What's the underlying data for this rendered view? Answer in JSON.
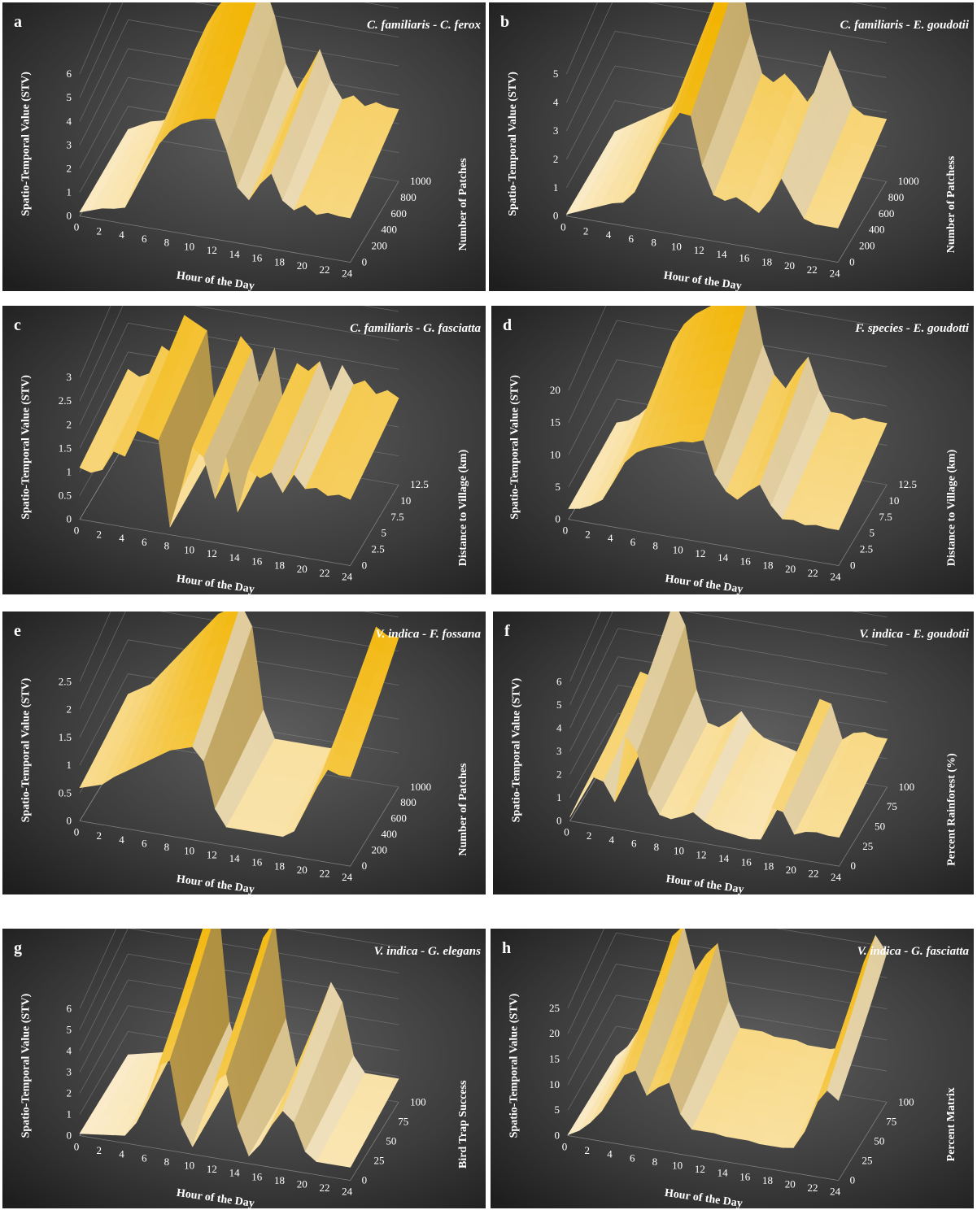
{
  "chart_data": [
    {
      "type": "surface",
      "letter": "a",
      "title": "C. familiaris - C. ferox",
      "xlabel": "Hour of the Day",
      "ylabel": "Spatio-Temporal Value (STV)",
      "zlabel": "Number of Patches",
      "xticks": [
        "0",
        "2",
        "4",
        "6",
        "8",
        "10",
        "12",
        "14",
        "16",
        "18",
        "20",
        "22",
        "24"
      ],
      "yticks": [
        "0",
        "1",
        "2",
        "3",
        "4",
        "5",
        "6"
      ],
      "zticks": [
        "0",
        "200",
        "400",
        "600",
        "800",
        "1000"
      ],
      "ylim": [
        0,
        6
      ],
      "x": [
        0,
        1,
        2,
        3,
        4,
        5,
        6,
        7,
        8,
        9,
        10,
        11,
        12,
        13,
        14,
        15,
        16,
        17,
        18,
        19,
        20,
        21,
        22,
        23,
        24
      ],
      "values": [
        0.2,
        0.4,
        0.6,
        0.7,
        0.9,
        2.3,
        3.4,
        4.3,
        5.0,
        5.5,
        5.8,
        6.0,
        6.1,
        5.0,
        3.4,
        2.6,
        3.3,
        4.1,
        3.1,
        2.5,
        2.7,
        2.4,
        2.6,
        2.5,
        2.5
      ],
      "depth_drop": [
        0.1,
        0.2,
        0.3,
        0.4,
        0.6,
        1.2,
        1.6,
        2.0,
        2.2,
        2.5,
        2.7,
        2.8,
        2.9,
        3.2,
        3.0,
        2.0,
        1.8,
        2.6,
        2.8,
        2.0,
        1.7,
        1.8,
        1.9,
        1.8,
        1.8
      ]
    },
    {
      "type": "surface",
      "letter": "b",
      "title": "C. familiaris - E. goudotii",
      "xlabel": "Hour of the Day",
      "ylabel": "Spatio-Temporal Value (STV)",
      "zlabel": "Number of Patchess",
      "xticks": [
        "0",
        "2",
        "4",
        "6",
        "8",
        "10",
        "12",
        "14",
        "16",
        "18",
        "20",
        "22",
        "24"
      ],
      "yticks": [
        "0",
        "1",
        "2",
        "3",
        "4",
        "5"
      ],
      "zticks": [
        "0",
        "200",
        "400",
        "600",
        "800",
        "1000"
      ],
      "ylim": [
        0,
        5
      ],
      "x": [
        0,
        1,
        2,
        3,
        4,
        5,
        6,
        7,
        8,
        9,
        10,
        11,
        12,
        13,
        14,
        15,
        16,
        17,
        18,
        19,
        20,
        21,
        22,
        23,
        24
      ],
      "values": [
        0.1,
        0.3,
        0.5,
        0.7,
        0.9,
        1.1,
        1.6,
        2.6,
        3.6,
        4.5,
        5.3,
        5.4,
        3.6,
        2.5,
        2.3,
        2.6,
        2.3,
        1.9,
        2.4,
        3.5,
        2.8,
        2.0,
        1.8,
        1.8,
        1.8
      ],
      "depth_drop": [
        0.1,
        0.2,
        0.3,
        0.4,
        0.5,
        0.8,
        1.0,
        1.4,
        1.8,
        2.3,
        2.8,
        3.2,
        2.9,
        2.5,
        2.3,
        2.6,
        2.3,
        1.8,
        1.7,
        2.5,
        2.4,
        1.9,
        1.7,
        1.7,
        1.7
      ]
    },
    {
      "type": "surface",
      "letter": "c",
      "title": "C. familiaris - G. fasciatta",
      "xlabel": "Hour of the Day",
      "ylabel": "Spatio-Temporal Value (STV)",
      "zlabel": "Distance to Village (km)",
      "xticks": [
        "0",
        "2",
        "4",
        "6",
        "8",
        "10",
        "12",
        "14",
        "16",
        "18",
        "20",
        "22",
        "24"
      ],
      "yticks": [
        "0",
        "0.5",
        "1",
        "1.5",
        "2",
        "2.5",
        "3"
      ],
      "zticks": [
        "0",
        "2.5",
        "5",
        "7.5",
        "10",
        "12.5"
      ],
      "ylim": [
        0,
        3
      ],
      "x": [
        0,
        1,
        2,
        3,
        4,
        5,
        6,
        7,
        8,
        9,
        10,
        11,
        12,
        13,
        14,
        15,
        16,
        17,
        18,
        19,
        20,
        21,
        22,
        23,
        24
      ],
      "values": [
        1.2,
        1.1,
        1.2,
        1.7,
        1.6,
        2.3,
        2.2,
        2.1,
        0.2,
        1.1,
        2.1,
        1.9,
        1.0,
        2.0,
        0.8,
        1.8,
        1.7,
        1.9,
        1.4,
        1.9,
        1.6,
        1.7,
        1.5,
        1.6,
        1.5
      ],
      "depth_drop": [
        0.3,
        0.2,
        0.2,
        0.4,
        0.3,
        0.6,
        0.5,
        0.4,
        0.1,
        0.3,
        0.5,
        0.4,
        0.2,
        0.4,
        0.2,
        0.4,
        0.5,
        0.6,
        0.3,
        0.5,
        0.4,
        0.5,
        0.3,
        0.4,
        0.3
      ]
    },
    {
      "type": "surface",
      "letter": "d",
      "title": "F. species - E. goudotti",
      "xlabel": "Hour of the Day",
      "ylabel": "Spatio-Temporal Value (STV)",
      "zlabel": "Distance to Village (km)",
      "xticks": [
        "0",
        "2",
        "4",
        "6",
        "8",
        "10",
        "12",
        "14",
        "16",
        "18",
        "20",
        "22",
        "24"
      ],
      "yticks": [
        "0",
        "5",
        "10",
        "15",
        "20"
      ],
      "zticks": [
        "0",
        "2.5",
        "5",
        "7.5",
        "10",
        "12.5"
      ],
      "ylim": [
        0,
        22
      ],
      "x": [
        0,
        1,
        2,
        3,
        4,
        5,
        6,
        7,
        8,
        9,
        10,
        11,
        12,
        13,
        14,
        15,
        16,
        17,
        18,
        19,
        20,
        21,
        22,
        23,
        24
      ],
      "values": [
        2.0,
        2.5,
        3.5,
        5.0,
        9.0,
        13.5,
        16.0,
        17.5,
        18.5,
        19.5,
        20.5,
        21.0,
        22.0,
        15.0,
        11.5,
        10.0,
        12.5,
        14.5,
        10.5,
        8.0,
        8.0,
        7.5,
        8.0,
        7.8,
        7.8
      ],
      "depth_drop": [
        1.0,
        1.5,
        2.0,
        3.0,
        5.5,
        9.0,
        11.0,
        12.5,
        13.5,
        14.5,
        15.5,
        16.5,
        17.5,
        12.0,
        8.5,
        7.0,
        9.5,
        11.5,
        8.5,
        6.5,
        6.0,
        6.0,
        6.5,
        6.5,
        6.5
      ]
    },
    {
      "type": "surface",
      "letter": "e",
      "title": "V. indica - F. fossana",
      "xlabel": "Hour of the Day",
      "ylabel": "Spatio-Temporal Value (STV)",
      "zlabel": "Number of Patches",
      "xticks": [
        "0",
        "2",
        "4",
        "6",
        "8",
        "10",
        "12",
        "14",
        "16",
        "18",
        "20",
        "22",
        "24"
      ],
      "yticks": [
        "0",
        "0.5",
        "1",
        "1.5",
        "2",
        "2.5"
      ],
      "zticks": [
        "0",
        "200",
        "400",
        "600",
        "800",
        "1000"
      ],
      "ylim": [
        0,
        2.5
      ],
      "x": [
        0,
        1,
        2,
        3,
        4,
        5,
        6,
        7,
        8,
        9,
        10,
        11,
        12,
        13,
        14,
        15,
        16,
        17,
        18,
        19,
        20,
        21,
        22,
        23,
        24
      ],
      "values": [
        0.7,
        0.8,
        0.9,
        1.1,
        1.3,
        1.5,
        1.7,
        1.9,
        2.1,
        2.2,
        2.3,
        2.0,
        0.8,
        0.4,
        0.4,
        0.4,
        0.4,
        0.4,
        0.4,
        0.6,
        1.2,
        1.8,
        2.3,
        2.2,
        2.2
      ],
      "depth_drop": [
        0.3,
        0.4,
        0.5,
        0.6,
        0.8,
        1.0,
        1.2,
        1.4,
        1.6,
        1.7,
        1.8,
        1.6,
        0.5,
        0.2,
        0.2,
        0.2,
        0.2,
        0.2,
        0.2,
        0.4,
        0.9,
        1.4,
        1.8,
        1.7,
        1.7
      ]
    },
    {
      "type": "surface",
      "letter": "f",
      "title": "V. indica - E. goudotii",
      "xlabel": "Hour of the Day",
      "ylabel": "Spatio-Temporal Value (STV)",
      "zlabel": "Percent Rainforest (%)",
      "xticks": [
        "0",
        "2",
        "4",
        "6",
        "8",
        "10",
        "12",
        "14",
        "16",
        "18",
        "20",
        "22",
        "24"
      ],
      "yticks": [
        "0",
        "1",
        "2",
        "3",
        "4",
        "5",
        "6"
      ],
      "zticks": [
        "0",
        "25",
        "50",
        "75",
        "100"
      ],
      "ylim": [
        0,
        6
      ],
      "x": [
        0,
        1,
        2,
        3,
        4,
        5,
        6,
        7,
        8,
        9,
        10,
        11,
        12,
        13,
        14,
        15,
        16,
        17,
        18,
        19,
        20,
        21,
        22,
        23,
        24
      ],
      "values": [
        0.2,
        1.5,
        2.6,
        2.5,
        1.5,
        5.3,
        4.5,
        2.3,
        1.2,
        1.1,
        1.4,
        1.8,
        1.3,
        1.0,
        0.9,
        0.8,
        0.7,
        0.8,
        2.7,
        2.6,
        1.4,
        1.7,
        1.8,
        1.7,
        1.7
      ],
      "depth_drop": [
        0.1,
        0.8,
        1.5,
        1.6,
        1.0,
        3.5,
        3.0,
        1.6,
        0.8,
        0.8,
        1.1,
        1.5,
        1.0,
        0.8,
        0.7,
        0.6,
        0.5,
        0.6,
        1.9,
        1.9,
        1.0,
        1.3,
        1.4,
        1.3,
        1.3
      ]
    },
    {
      "type": "surface",
      "letter": "g",
      "title": "V. indica - G. elegans",
      "xlabel": "Hour of the Day",
      "ylabel": "Spatio-Temporal Value (STV)",
      "zlabel": "Bird Trap Success",
      "xticks": [
        "0",
        "2",
        "4",
        "6",
        "8",
        "10",
        "12",
        "14",
        "16",
        "18",
        "20",
        "22",
        "24"
      ],
      "yticks": [
        "0",
        "1",
        "2",
        "3",
        "4",
        "5",
        "6"
      ],
      "zticks": [
        "0",
        "25",
        "50",
        "75",
        "100"
      ],
      "ylim": [
        0,
        6.5
      ],
      "x": [
        0,
        1,
        2,
        3,
        4,
        5,
        6,
        7,
        8,
        9,
        10,
        11,
        12,
        13,
        14,
        15,
        16,
        17,
        18,
        19,
        20,
        21,
        22,
        23,
        24
      ],
      "values": [
        0.1,
        0.2,
        0.3,
        0.4,
        0.5,
        1.5,
        3.5,
        6.0,
        6.5,
        2.0,
        0.5,
        3.0,
        5.5,
        6.2,
        2.5,
        0.5,
        1.5,
        3.0,
        4.2,
        3.5,
        1.5,
        0.9,
        0.9,
        0.9,
        0.9
      ],
      "depth_drop": [
        0.0,
        0.1,
        0.2,
        0.3,
        0.4,
        1.3,
        3.4,
        5.9,
        6.4,
        1.9,
        0.4,
        2.9,
        5.4,
        6.1,
        2.4,
        0.4,
        1.4,
        2.9,
        4.1,
        3.4,
        1.4,
        0.8,
        0.8,
        0.8,
        0.8
      ]
    },
    {
      "type": "surface",
      "letter": "h",
      "title": "V. indica - G. fasciatta",
      "xlabel": "Hour of the Day",
      "ylabel": "Spatio-Temporal Value (STV)",
      "zlabel": "Percent Matrix",
      "xticks": [
        "0",
        "2",
        "4",
        "6",
        "8",
        "10",
        "12",
        "14",
        "16",
        "18",
        "20",
        "22",
        "24"
      ],
      "yticks": [
        "0",
        "5",
        "10",
        "15",
        "20",
        "25"
      ],
      "zticks": [
        "0",
        "25",
        "50",
        "75",
        "100"
      ],
      "ylim": [
        0,
        27
      ],
      "x": [
        0,
        1,
        2,
        3,
        4,
        5,
        6,
        7,
        8,
        9,
        10,
        11,
        12,
        13,
        14,
        15,
        16,
        17,
        18,
        19,
        20,
        21,
        22,
        23,
        24
      ],
      "values": [
        0.2,
        2.0,
        5.0,
        9.0,
        15.0,
        21.0,
        23.0,
        16.0,
        19.0,
        21.0,
        12.0,
        8.0,
        8.0,
        8.0,
        7.5,
        7.5,
        7.5,
        7.0,
        7.0,
        7.0,
        7.5,
        13.0,
        22.0,
        26.5,
        24.0
      ],
      "depth_drop": [
        0.1,
        1.8,
        4.8,
        8.8,
        14.8,
        20.8,
        22.8,
        15.8,
        18.8,
        20.8,
        11.8,
        7.8,
        7.8,
        7.8,
        7.3,
        7.3,
        7.3,
        6.8,
        6.8,
        6.8,
        7.3,
        12.8,
        21.8,
        26.3,
        23.8
      ]
    }
  ]
}
